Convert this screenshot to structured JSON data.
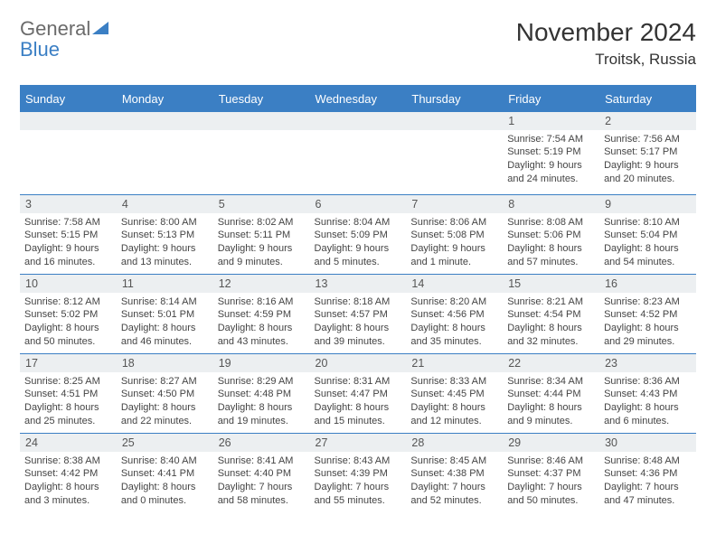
{
  "logo": {
    "word1": "General",
    "word2": "Blue"
  },
  "title": "November 2024",
  "location": "Troitsk, Russia",
  "colors": {
    "header_bg": "#3b7fc4",
    "header_text": "#ffffff",
    "daynum_bg": "#eceff1",
    "rule": "#3b7fc4",
    "text": "#444444"
  },
  "weekdays": [
    "Sunday",
    "Monday",
    "Tuesday",
    "Wednesday",
    "Thursday",
    "Friday",
    "Saturday"
  ],
  "weeks": [
    [
      {
        "day": "",
        "sunrise": "",
        "sunset": "",
        "daylight": ""
      },
      {
        "day": "",
        "sunrise": "",
        "sunset": "",
        "daylight": ""
      },
      {
        "day": "",
        "sunrise": "",
        "sunset": "",
        "daylight": ""
      },
      {
        "day": "",
        "sunrise": "",
        "sunset": "",
        "daylight": ""
      },
      {
        "day": "",
        "sunrise": "",
        "sunset": "",
        "daylight": ""
      },
      {
        "day": "1",
        "sunrise": "Sunrise: 7:54 AM",
        "sunset": "Sunset: 5:19 PM",
        "daylight": "Daylight: 9 hours and 24 minutes."
      },
      {
        "day": "2",
        "sunrise": "Sunrise: 7:56 AM",
        "sunset": "Sunset: 5:17 PM",
        "daylight": "Daylight: 9 hours and 20 minutes."
      }
    ],
    [
      {
        "day": "3",
        "sunrise": "Sunrise: 7:58 AM",
        "sunset": "Sunset: 5:15 PM",
        "daylight": "Daylight: 9 hours and 16 minutes."
      },
      {
        "day": "4",
        "sunrise": "Sunrise: 8:00 AM",
        "sunset": "Sunset: 5:13 PM",
        "daylight": "Daylight: 9 hours and 13 minutes."
      },
      {
        "day": "5",
        "sunrise": "Sunrise: 8:02 AM",
        "sunset": "Sunset: 5:11 PM",
        "daylight": "Daylight: 9 hours and 9 minutes."
      },
      {
        "day": "6",
        "sunrise": "Sunrise: 8:04 AM",
        "sunset": "Sunset: 5:09 PM",
        "daylight": "Daylight: 9 hours and 5 minutes."
      },
      {
        "day": "7",
        "sunrise": "Sunrise: 8:06 AM",
        "sunset": "Sunset: 5:08 PM",
        "daylight": "Daylight: 9 hours and 1 minute."
      },
      {
        "day": "8",
        "sunrise": "Sunrise: 8:08 AM",
        "sunset": "Sunset: 5:06 PM",
        "daylight": "Daylight: 8 hours and 57 minutes."
      },
      {
        "day": "9",
        "sunrise": "Sunrise: 8:10 AM",
        "sunset": "Sunset: 5:04 PM",
        "daylight": "Daylight: 8 hours and 54 minutes."
      }
    ],
    [
      {
        "day": "10",
        "sunrise": "Sunrise: 8:12 AM",
        "sunset": "Sunset: 5:02 PM",
        "daylight": "Daylight: 8 hours and 50 minutes."
      },
      {
        "day": "11",
        "sunrise": "Sunrise: 8:14 AM",
        "sunset": "Sunset: 5:01 PM",
        "daylight": "Daylight: 8 hours and 46 minutes."
      },
      {
        "day": "12",
        "sunrise": "Sunrise: 8:16 AM",
        "sunset": "Sunset: 4:59 PM",
        "daylight": "Daylight: 8 hours and 43 minutes."
      },
      {
        "day": "13",
        "sunrise": "Sunrise: 8:18 AM",
        "sunset": "Sunset: 4:57 PM",
        "daylight": "Daylight: 8 hours and 39 minutes."
      },
      {
        "day": "14",
        "sunrise": "Sunrise: 8:20 AM",
        "sunset": "Sunset: 4:56 PM",
        "daylight": "Daylight: 8 hours and 35 minutes."
      },
      {
        "day": "15",
        "sunrise": "Sunrise: 8:21 AM",
        "sunset": "Sunset: 4:54 PM",
        "daylight": "Daylight: 8 hours and 32 minutes."
      },
      {
        "day": "16",
        "sunrise": "Sunrise: 8:23 AM",
        "sunset": "Sunset: 4:52 PM",
        "daylight": "Daylight: 8 hours and 29 minutes."
      }
    ],
    [
      {
        "day": "17",
        "sunrise": "Sunrise: 8:25 AM",
        "sunset": "Sunset: 4:51 PM",
        "daylight": "Daylight: 8 hours and 25 minutes."
      },
      {
        "day": "18",
        "sunrise": "Sunrise: 8:27 AM",
        "sunset": "Sunset: 4:50 PM",
        "daylight": "Daylight: 8 hours and 22 minutes."
      },
      {
        "day": "19",
        "sunrise": "Sunrise: 8:29 AM",
        "sunset": "Sunset: 4:48 PM",
        "daylight": "Daylight: 8 hours and 19 minutes."
      },
      {
        "day": "20",
        "sunrise": "Sunrise: 8:31 AM",
        "sunset": "Sunset: 4:47 PM",
        "daylight": "Daylight: 8 hours and 15 minutes."
      },
      {
        "day": "21",
        "sunrise": "Sunrise: 8:33 AM",
        "sunset": "Sunset: 4:45 PM",
        "daylight": "Daylight: 8 hours and 12 minutes."
      },
      {
        "day": "22",
        "sunrise": "Sunrise: 8:34 AM",
        "sunset": "Sunset: 4:44 PM",
        "daylight": "Daylight: 8 hours and 9 minutes."
      },
      {
        "day": "23",
        "sunrise": "Sunrise: 8:36 AM",
        "sunset": "Sunset: 4:43 PM",
        "daylight": "Daylight: 8 hours and 6 minutes."
      }
    ],
    [
      {
        "day": "24",
        "sunrise": "Sunrise: 8:38 AM",
        "sunset": "Sunset: 4:42 PM",
        "daylight": "Daylight: 8 hours and 3 minutes."
      },
      {
        "day": "25",
        "sunrise": "Sunrise: 8:40 AM",
        "sunset": "Sunset: 4:41 PM",
        "daylight": "Daylight: 8 hours and 0 minutes."
      },
      {
        "day": "26",
        "sunrise": "Sunrise: 8:41 AM",
        "sunset": "Sunset: 4:40 PM",
        "daylight": "Daylight: 7 hours and 58 minutes."
      },
      {
        "day": "27",
        "sunrise": "Sunrise: 8:43 AM",
        "sunset": "Sunset: 4:39 PM",
        "daylight": "Daylight: 7 hours and 55 minutes."
      },
      {
        "day": "28",
        "sunrise": "Sunrise: 8:45 AM",
        "sunset": "Sunset: 4:38 PM",
        "daylight": "Daylight: 7 hours and 52 minutes."
      },
      {
        "day": "29",
        "sunrise": "Sunrise: 8:46 AM",
        "sunset": "Sunset: 4:37 PM",
        "daylight": "Daylight: 7 hours and 50 minutes."
      },
      {
        "day": "30",
        "sunrise": "Sunrise: 8:48 AM",
        "sunset": "Sunset: 4:36 PM",
        "daylight": "Daylight: 7 hours and 47 minutes."
      }
    ]
  ]
}
